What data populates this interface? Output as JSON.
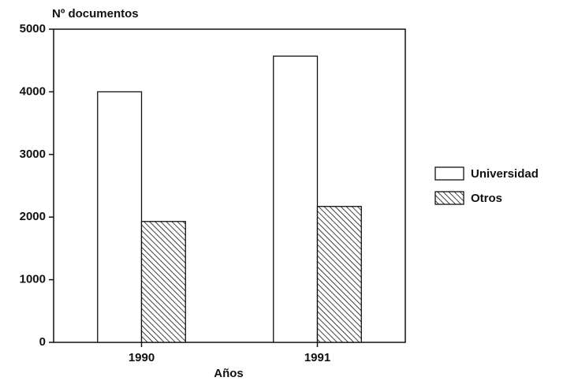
{
  "chart_data": {
    "type": "bar",
    "ylabel": "Nº documentos",
    "xlabel": "Años",
    "categories": [
      "1990",
      "1991"
    ],
    "series": [
      {
        "name": "Universidad",
        "color": "#ffffff",
        "hatch": false,
        "values": [
          4000,
          4570
        ]
      },
      {
        "name": "Otros",
        "color": "#000000",
        "hatch": true,
        "values": [
          1930,
          2170
        ]
      }
    ],
    "ylim": [
      0,
      5000
    ],
    "yticks": [
      0,
      1000,
      2000,
      3000,
      4000,
      5000
    ],
    "grid": false,
    "legend": "right"
  }
}
